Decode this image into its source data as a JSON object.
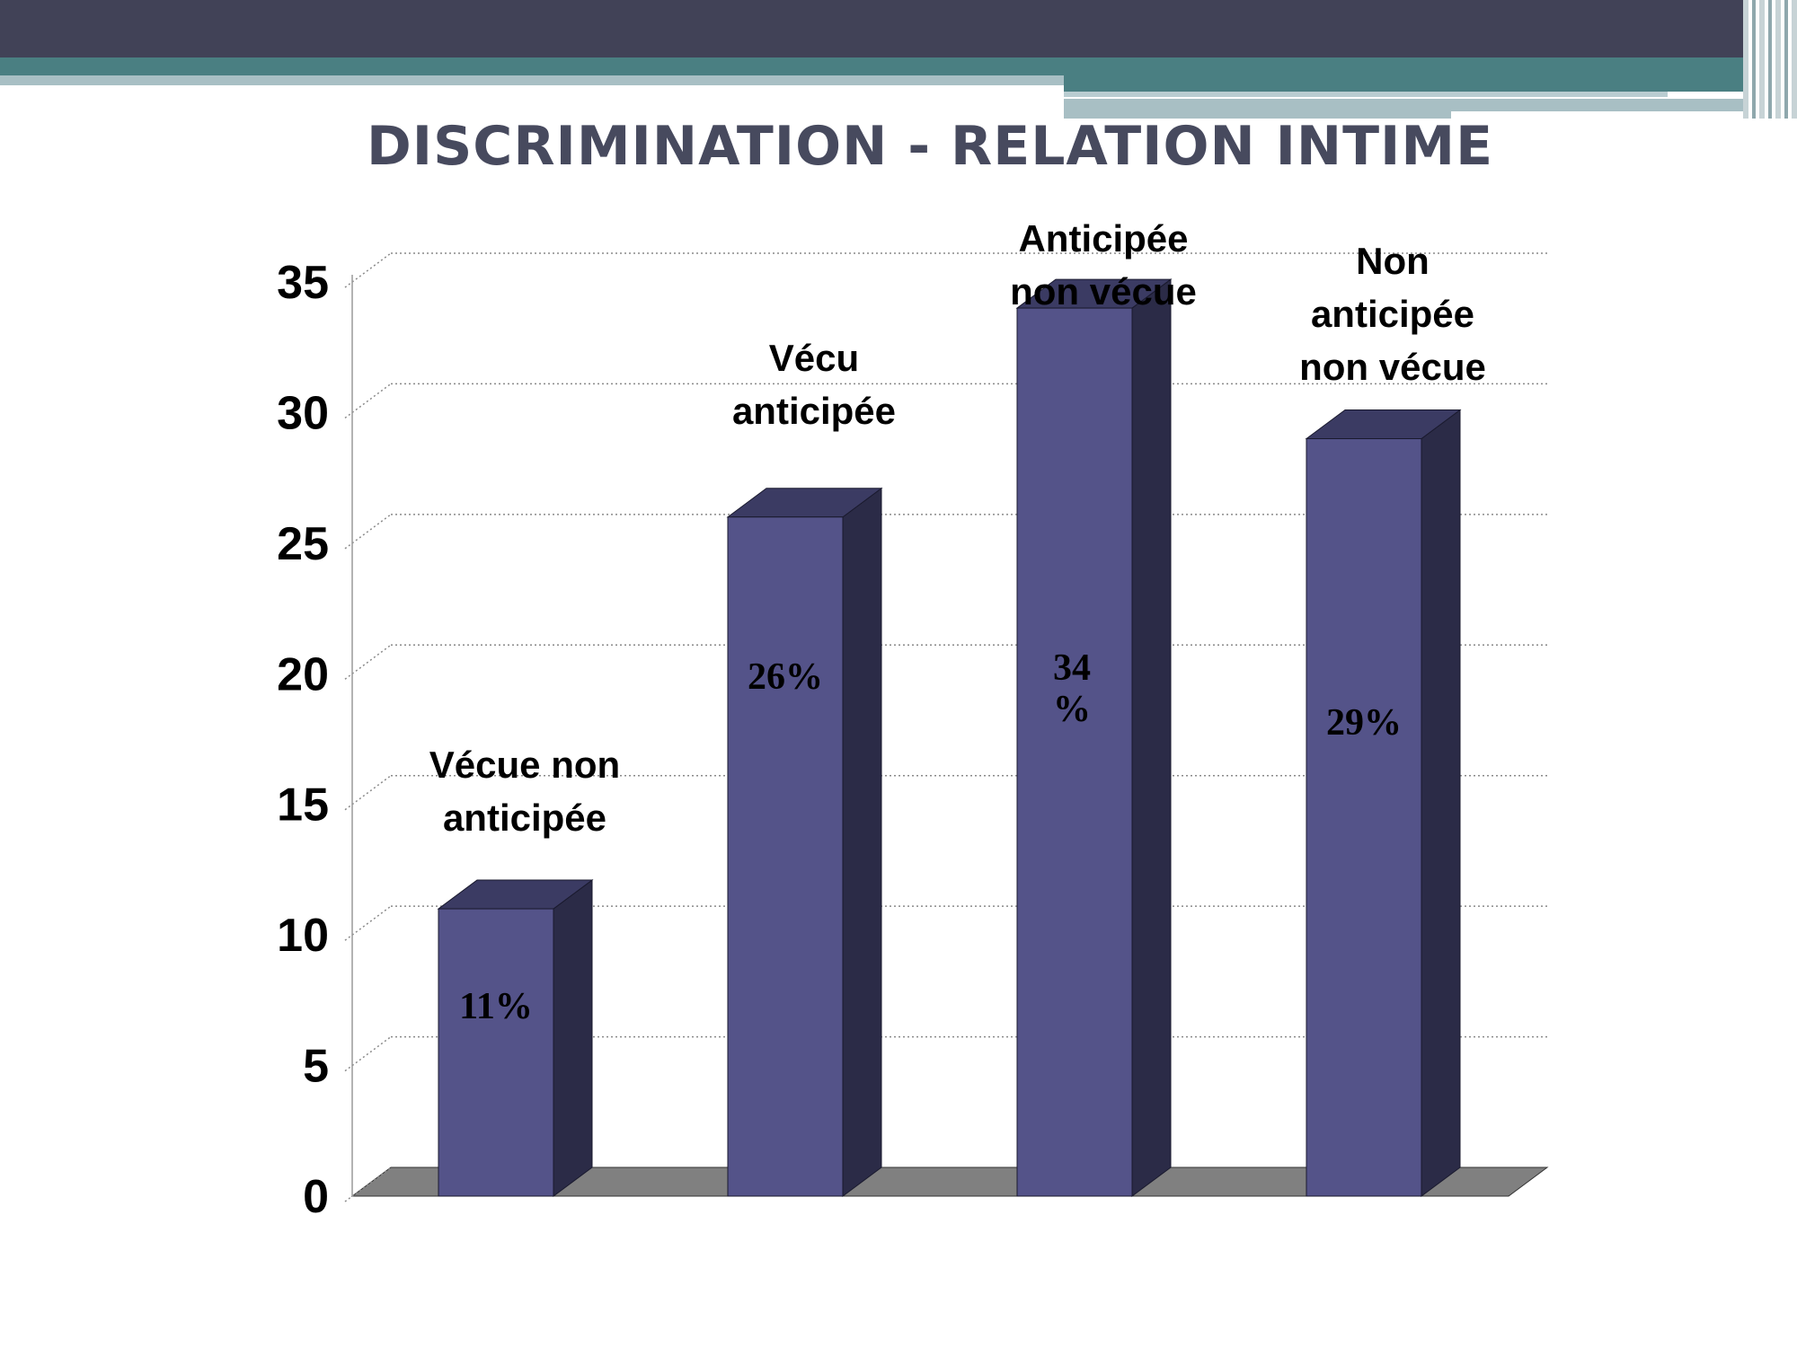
{
  "slide": {
    "title": "DISCRIMINATION - RELATION INTIME",
    "colors": {
      "header_dark": "#414257",
      "header_teal": "#4a7f82",
      "header_light": "#a8bfc4",
      "title": "#474a5e"
    }
  },
  "chart_data": {
    "type": "bar",
    "style": "3d-column",
    "title": "",
    "xlabel": "",
    "ylabel": "",
    "categories": [
      "Vécue non anticipée",
      "Vécu anticipée",
      "Anticipée non vécue",
      "Non anticipée non vécue"
    ],
    "category_label_lines": [
      [
        "Vécue non",
        "anticipée"
      ],
      [
        "Vécu",
        "anticipée"
      ],
      [
        "Anticipée",
        "non vécue"
      ],
      [
        "Non",
        "anticipée",
        "non vécue"
      ]
    ],
    "values": [
      11,
      26,
      34,
      29
    ],
    "value_labels": [
      [
        "11%"
      ],
      [
        "26%"
      ],
      [
        "34",
        "%"
      ],
      [
        "29%"
      ]
    ],
    "yticks": [
      "0",
      "5",
      "10",
      "15",
      "20",
      "25",
      "30",
      "35"
    ],
    "ylim": [
      0,
      35
    ],
    "grid": true,
    "legend": "none",
    "colors": {
      "bar_front": "#545389",
      "bar_top": "#3b3b63",
      "bar_side": "#2b2b47",
      "floor": "#808080",
      "grid": "#8a8a8a"
    }
  }
}
